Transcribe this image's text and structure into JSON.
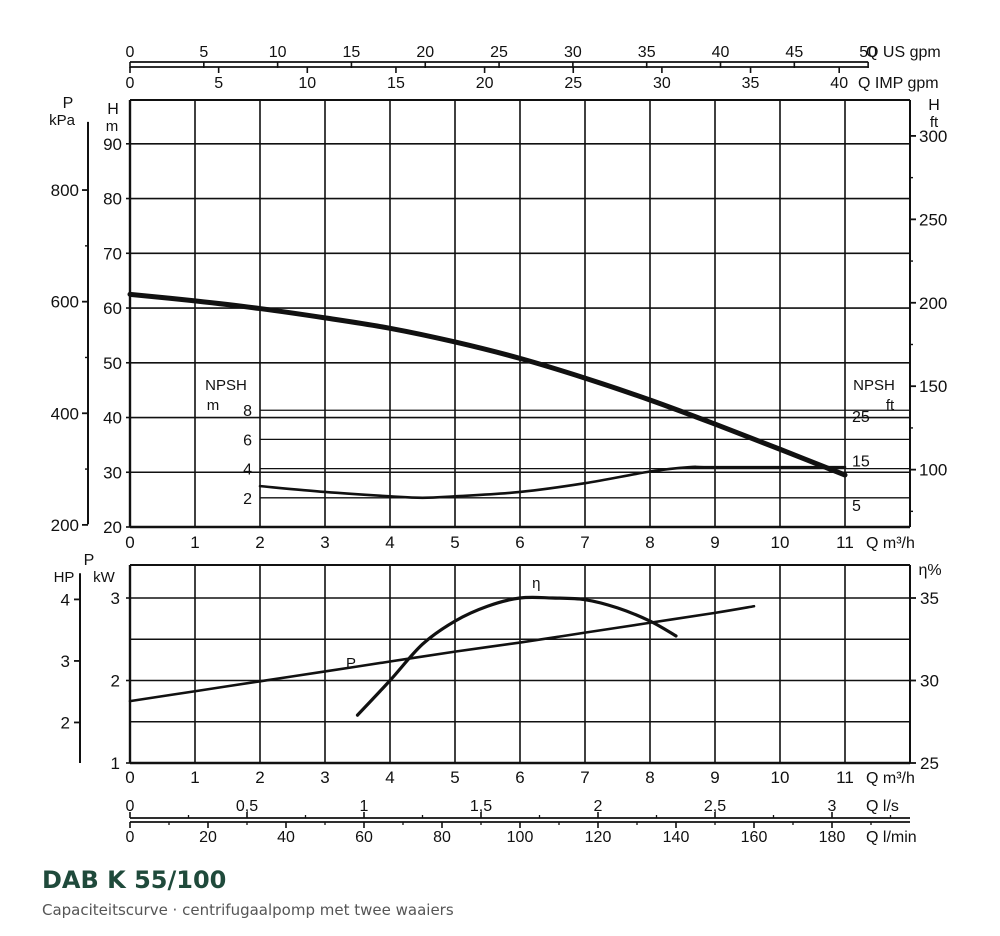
{
  "chart_data": {
    "type": "line",
    "title": "DAB K 55/100",
    "subtitle": "Capaciteitscurve · centrifugaalpomp met twee waaiers",
    "x_top_axes": [
      {
        "label": "Q US gpm",
        "ticks": [
          0,
          5,
          10,
          15,
          20,
          25,
          30,
          35,
          40,
          45,
          50
        ],
        "max": 50
      },
      {
        "label": "Q IMP gpm",
        "ticks": [
          0,
          5,
          10,
          15,
          20,
          25,
          30,
          35,
          40
        ],
        "max": 41.63
      }
    ],
    "upper_panel": {
      "xlabel": "Q m³/h",
      "xlim": [
        0,
        12
      ],
      "x_ticks": [
        0,
        1,
        2,
        3,
        4,
        5,
        6,
        7,
        8,
        9,
        10,
        11
      ],
      "left_axes": [
        {
          "label_line1": "P",
          "label_line2": "kPa",
          "ticks": [
            200,
            400,
            600,
            800
          ]
        },
        {
          "label_line1": "H",
          "label_line2": "m",
          "ylim": [
            20,
            98
          ],
          "ticks": [
            20,
            30,
            40,
            50,
            60,
            70,
            80,
            90
          ]
        }
      ],
      "right_axis": {
        "label_line1": "H",
        "label_line2": "ft",
        "ticks": [
          100,
          150,
          200,
          250,
          300
        ]
      },
      "npsh_left": {
        "label_line1": "NPSH",
        "label_line2": "m",
        "ticks": [
          2,
          4,
          6,
          8
        ]
      },
      "npsh_right": {
        "label_line1": "NPSH",
        "label_line2": "ft",
        "ticks": [
          5,
          15,
          25
        ]
      },
      "series": [
        {
          "id": "H",
          "x": [
            0,
            1,
            2,
            3,
            4,
            5,
            6,
            7,
            8,
            9,
            10,
            11
          ],
          "y": [
            62.5,
            61.3,
            59.9,
            58.2,
            56.3,
            53.8,
            50.8,
            47.2,
            43.2,
            38.8,
            34.2,
            29.5
          ]
        },
        {
          "id": "NPSH",
          "x": [
            2,
            3,
            4,
            4.5,
            5,
            6,
            7,
            8,
            8.6,
            9,
            11
          ],
          "y": [
            2.8,
            2.4,
            2.1,
            2.0,
            2.1,
            2.4,
            3.0,
            3.8,
            4.1,
            4.1,
            4.1
          ]
        }
      ]
    },
    "lower_panel": {
      "xlabel": "Q m³/h",
      "xlim": [
        0,
        12
      ],
      "x_ticks": [
        0,
        1,
        2,
        3,
        4,
        5,
        6,
        7,
        8,
        9,
        10,
        11
      ],
      "left_axes": [
        {
          "label": "HP",
          "ticks": [
            2,
            3,
            4
          ]
        },
        {
          "label_line1": "P",
          "label_line2": "kW",
          "ylim": [
            1,
            3.4
          ],
          "ticks": [
            1,
            2,
            3
          ]
        }
      ],
      "right_axis": {
        "label": "η%",
        "ylim": [
          25,
          37
        ],
        "ticks": [
          25,
          30,
          35
        ]
      },
      "series": [
        {
          "id": "P",
          "label": "P",
          "x": [
            0,
            1,
            2,
            3,
            4,
            5,
            6,
            7,
            8,
            9,
            9.6
          ],
          "y": [
            1.75,
            1.87,
            1.99,
            2.11,
            2.23,
            2.35,
            2.46,
            2.58,
            2.7,
            2.82,
            2.9
          ]
        },
        {
          "id": "eta",
          "label": "η",
          "x": [
            3.5,
            4,
            4.5,
            5,
            5.5,
            6,
            6.5,
            7,
            7.5,
            8,
            8.4
          ],
          "y": [
            27.9,
            30.0,
            32.2,
            33.6,
            34.5,
            35.0,
            35.0,
            34.9,
            34.4,
            33.6,
            32.7
          ]
        }
      ]
    },
    "x_bottom_axes": [
      {
        "label": "Q l/s",
        "ticks": [
          "0",
          "0,5",
          "1",
          "1,5",
          "2",
          "2,5",
          "3"
        ],
        "tick_values": [
          0,
          0.5,
          1,
          1.5,
          2,
          2.5,
          3
        ],
        "max": 3.333
      },
      {
        "label": "Q l/min",
        "ticks": [
          "0",
          "20",
          "40",
          "60",
          "80",
          "100",
          "120",
          "140",
          "160",
          "180"
        ],
        "tick_values": [
          0,
          20,
          40,
          60,
          80,
          100,
          120,
          140,
          160,
          180
        ],
        "max": 200
      }
    ],
    "grid": true
  }
}
